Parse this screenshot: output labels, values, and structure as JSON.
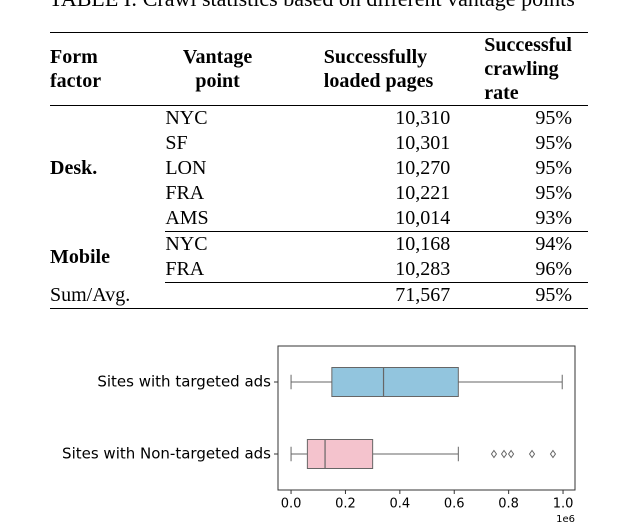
{
  "caption": "TABLE I: Crawl statistics based on different vantage points",
  "table": {
    "header": [
      "Form\nfactor",
      "Vantage\npoint",
      "Successfully\nloaded pages",
      "Successful\ncrawling rate"
    ],
    "groups": [
      {
        "label": "Desk.",
        "rows": [
          [
            "NYC",
            "10,310",
            "95%"
          ],
          [
            "SF",
            "10,301",
            "95%"
          ],
          [
            "LON",
            "10,270",
            "95%"
          ],
          [
            "FRA",
            "10,221",
            "95%"
          ],
          [
            "AMS",
            "10,014",
            "93%"
          ]
        ]
      },
      {
        "label": "Mobile",
        "rows": [
          [
            "NYC",
            "10,168",
            "94%"
          ],
          [
            "FRA",
            "10,283",
            "96%"
          ]
        ]
      }
    ],
    "total": {
      "label": "Sum/Avg.",
      "pages": "71,567",
      "rate": "95%"
    }
  },
  "chart_data": {
    "type": "box",
    "orientation": "horizontal",
    "categories": [
      "Sites with targeted ads",
      "Sites with Non-targeted ads"
    ],
    "colors": [
      "#92c5de",
      "#f4c3cd"
    ],
    "boxes": [
      {
        "whislo": 0,
        "q1": 0.15,
        "med": 0.34,
        "q3": 0.615,
        "whishi": 0.997,
        "fliers": []
      },
      {
        "whislo": 0,
        "q1": 0.06,
        "med": 0.125,
        "q3": 0.3,
        "whishi": 0.615,
        "fliers": [
          0.746,
          0.783,
          0.809,
          0.886,
          0.963
        ]
      }
    ],
    "xlim": [
      -0.048,
      1.044
    ],
    "xticks": [
      {
        "value": 0,
        "label": "0.0"
      },
      0.2,
      0.4,
      0.6,
      0.8,
      {
        "value": 1,
        "label": "1.0"
      }
    ],
    "x_offset_label": "1e6"
  }
}
